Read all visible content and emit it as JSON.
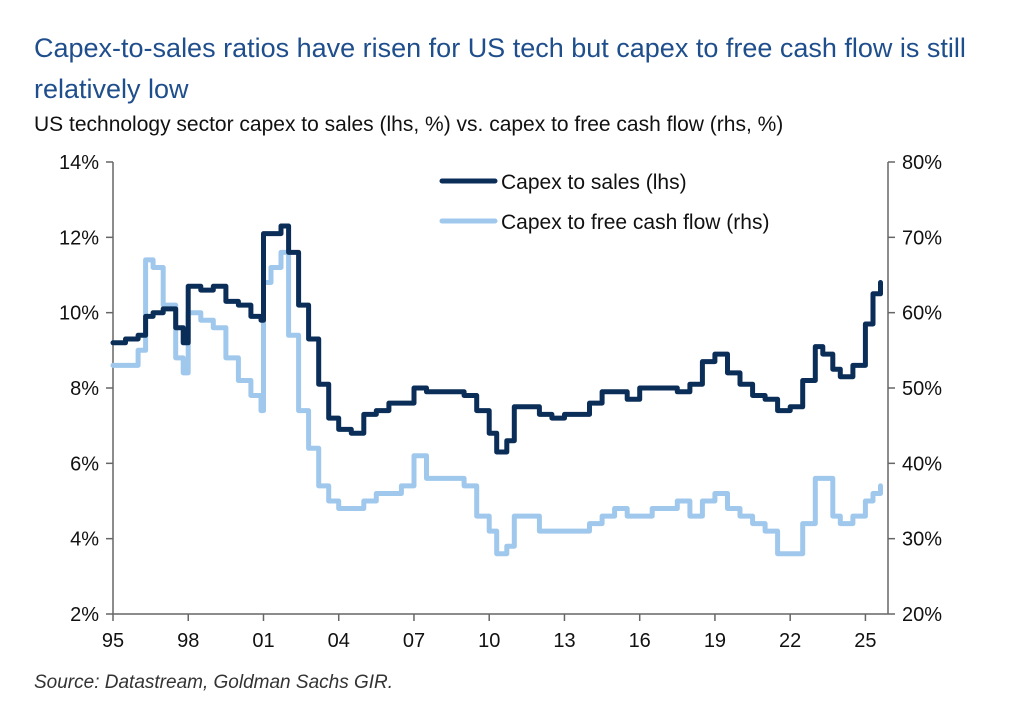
{
  "title": "Capex-to-sales ratios have risen for US tech but capex to free cash flow is still relatively low",
  "subtitle": "US technology sector capex to sales (lhs, %) vs. capex to free cash flow (rhs, %)",
  "source": "Source: Datastream, Goldman Sachs GIR.",
  "colors": {
    "title": "#1f4e8c",
    "capex_sales": "#0b2e59",
    "capex_fcf": "#9fc8ec",
    "axis": "#666666"
  },
  "chart_data": {
    "type": "line",
    "title": "US technology sector capex to sales (lhs, %) vs. capex to free cash flow (rhs, %)",
    "x_tick_labels": [
      "95",
      "98",
      "01",
      "04",
      "07",
      "10",
      "13",
      "16",
      "19",
      "22",
      "25"
    ],
    "x_tick_years": [
      1995,
      1998,
      2001,
      2004,
      2007,
      2010,
      2013,
      2016,
      2019,
      2022,
      2025
    ],
    "xlim": [
      1995,
      2025.9
    ],
    "y_left": {
      "label": "lhs, %",
      "ylim": [
        2,
        14
      ],
      "ticks": [
        2,
        4,
        6,
        8,
        10,
        12,
        14
      ],
      "tick_labels": [
        "2%",
        "4%",
        "6%",
        "8%",
        "10%",
        "12%",
        "14%"
      ]
    },
    "y_right": {
      "label": "rhs, %",
      "ylim": [
        20,
        80
      ],
      "ticks": [
        20,
        30,
        40,
        50,
        60,
        70,
        80
      ],
      "tick_labels": [
        "20%",
        "30%",
        "40%",
        "50%",
        "60%",
        "70%",
        "80%"
      ]
    },
    "legend": {
      "position": "top-center"
    },
    "series": [
      {
        "name": "Capex to sales (lhs)",
        "axis": "left",
        "x": [
          1995,
          1995.5,
          1996,
          1996.3,
          1996.6,
          1997,
          1997.5,
          1997.8,
          1998,
          1998.5,
          1999,
          1999.5,
          2000,
          2000.5,
          2000.9,
          2001,
          2001.3,
          2001.7,
          2002,
          2002.4,
          2002.8,
          2003.2,
          2003.6,
          2004,
          2004.5,
          2005,
          2005.5,
          2006,
          2006.5,
          2007,
          2007.5,
          2008,
          2008.5,
          2009,
          2009.5,
          2010,
          2010.3,
          2010.7,
          2011,
          2011.5,
          2012,
          2012.5,
          2013,
          2013.5,
          2014,
          2014.5,
          2015,
          2015.5,
          2016,
          2016.5,
          2017,
          2017.5,
          2018,
          2018.5,
          2019,
          2019.5,
          2020,
          2020.5,
          2021,
          2021.5,
          2022,
          2022.5,
          2023,
          2023.3,
          2023.7,
          2024,
          2024.5,
          2025,
          2025.3,
          2025.6
        ],
        "values": [
          9.2,
          9.3,
          9.4,
          9.9,
          10.0,
          10.1,
          9.6,
          9.2,
          10.7,
          10.6,
          10.7,
          10.3,
          10.2,
          9.9,
          9.8,
          12.1,
          12.1,
          12.3,
          11.6,
          10.2,
          9.3,
          8.1,
          7.2,
          6.9,
          6.8,
          7.3,
          7.4,
          7.6,
          7.6,
          8.0,
          7.9,
          7.9,
          7.9,
          7.8,
          7.4,
          6.8,
          6.3,
          6.6,
          7.5,
          7.5,
          7.3,
          7.2,
          7.3,
          7.3,
          7.6,
          7.9,
          7.9,
          7.7,
          8.0,
          8.0,
          8.0,
          7.9,
          8.1,
          8.7,
          8.9,
          8.4,
          8.1,
          7.8,
          7.7,
          7.4,
          7.5,
          8.2,
          9.1,
          8.9,
          8.5,
          8.3,
          8.6,
          9.7,
          10.5,
          10.8
        ]
      },
      {
        "name": "Capex to free cash flow (rhs)",
        "axis": "right",
        "x": [
          1995,
          1995.5,
          1996,
          1996.3,
          1996.6,
          1997,
          1997.5,
          1997.8,
          1998,
          1998.5,
          1999,
          1999.5,
          2000,
          2000.5,
          2000.9,
          2001,
          2001.3,
          2001.7,
          2002,
          2002.4,
          2002.8,
          2003.2,
          2003.6,
          2004,
          2004.5,
          2005,
          2005.5,
          2006,
          2006.5,
          2007,
          2007.5,
          2008,
          2008.5,
          2009,
          2009.5,
          2010,
          2010.3,
          2010.7,
          2011,
          2011.5,
          2012,
          2012.5,
          2013,
          2013.5,
          2014,
          2014.5,
          2015,
          2015.5,
          2016,
          2016.5,
          2017,
          2017.5,
          2018,
          2018.5,
          2019,
          2019.5,
          2020,
          2020.5,
          2021,
          2021.5,
          2022,
          2022.5,
          2023,
          2023.3,
          2023.7,
          2024,
          2024.5,
          2025,
          2025.3,
          2025.6
        ],
        "values": [
          53,
          53,
          55,
          67,
          66,
          61,
          54,
          52,
          60,
          59,
          58,
          54,
          51,
          49,
          47,
          64,
          66,
          68,
          57,
          47,
          42,
          37,
          35,
          34,
          34,
          35,
          36,
          36,
          37,
          41,
          38,
          38,
          38,
          37,
          33,
          31,
          28,
          29,
          33,
          33,
          31,
          31,
          31,
          31,
          32,
          33,
          34,
          33,
          33,
          34,
          34,
          35,
          33,
          35,
          36,
          34,
          33,
          32,
          31,
          28,
          28,
          32,
          38,
          38,
          33,
          32,
          33,
          35,
          36,
          37
        ]
      }
    ]
  }
}
